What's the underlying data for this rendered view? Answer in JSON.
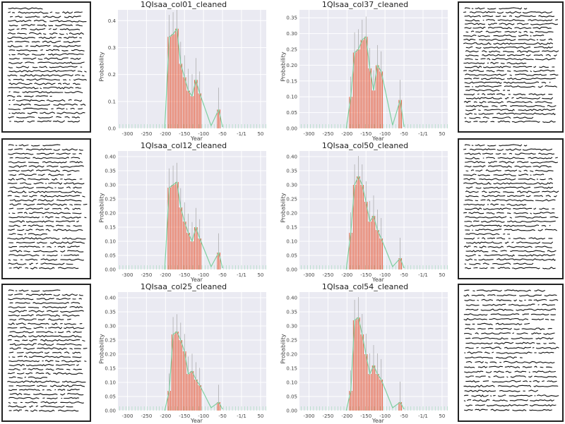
{
  "figure": {
    "thumbnails": [
      {
        "name": "manuscript-thumb-col01",
        "lines": 28
      },
      {
        "name": "manuscript-thumb-col12",
        "lines": 30
      },
      {
        "name": "manuscript-thumb-col25",
        "lines": 30
      },
      {
        "name": "manuscript-thumb-col37",
        "lines": 30
      },
      {
        "name": "manuscript-thumb-col50",
        "lines": 30
      },
      {
        "name": "manuscript-thumb-col54",
        "lines": 26
      }
    ]
  },
  "colors": {
    "bar": "#e8461e",
    "bar_edge": "#ffffff",
    "kde": "#7fcfa0",
    "plot_bg": "#eaeaf2",
    "grid": "#ffffff"
  },
  "chart_data": [
    {
      "type": "bar",
      "title": "1QIsaa_col01_cleaned",
      "xlabel": "Year",
      "ylabel": "Probability",
      "xlim": [
        -325,
        65
      ],
      "ylim": [
        0,
        0.44
      ],
      "xticks": [
        -300,
        -250,
        -200,
        -150,
        -100,
        -50,
        0,
        50
      ],
      "xtick_labels": [
        "-300",
        "-250",
        "-200",
        "-150",
        "-100",
        "-50",
        "-1/1",
        "50"
      ],
      "yticks": [
        0,
        0.1,
        0.2,
        0.3,
        0.4
      ],
      "ytick_labels": [
        "0.0",
        "0.1",
        "0.2",
        "0.3",
        "0.4"
      ],
      "grid": true,
      "bins": [
        {
          "x": -190,
          "y": 0.34
        },
        {
          "x": -180,
          "y": 0.35
        },
        {
          "x": -170,
          "y": 0.37
        },
        {
          "x": -160,
          "y": 0.24
        },
        {
          "x": -150,
          "y": 0.19
        },
        {
          "x": -140,
          "y": 0.14
        },
        {
          "x": -130,
          "y": 0.12
        },
        {
          "x": -120,
          "y": 0.18
        },
        {
          "x": -110,
          "y": 0.13
        },
        {
          "x": -60,
          "y": 0.07
        }
      ]
    },
    {
      "type": "bar",
      "title": "1QIsaa_col37_cleaned",
      "xlabel": "Year",
      "ylabel": "Probability",
      "xlim": [
        -325,
        65
      ],
      "ylim": [
        0,
        0.375
      ],
      "xticks": [
        -300,
        -250,
        -200,
        -150,
        -100,
        -50,
        0,
        50
      ],
      "xtick_labels": [
        "-300",
        "-250",
        "-200",
        "-150",
        "-100",
        "-50",
        "-1/1",
        "50"
      ],
      "yticks": [
        0,
        0.05,
        0.1,
        0.15,
        0.2,
        0.25,
        0.3,
        0.35
      ],
      "ytick_labels": [
        "0.00",
        "0.05",
        "0.10",
        "0.15",
        "0.20",
        "0.25",
        "0.30",
        "0.35"
      ],
      "grid": true,
      "bins": [
        {
          "x": -190,
          "y": 0.1
        },
        {
          "x": -180,
          "y": 0.24
        },
        {
          "x": -170,
          "y": 0.25
        },
        {
          "x": -160,
          "y": 0.28
        },
        {
          "x": -150,
          "y": 0.29
        },
        {
          "x": -140,
          "y": 0.19
        },
        {
          "x": -130,
          "y": 0.12
        },
        {
          "x": -120,
          "y": 0.2
        },
        {
          "x": -110,
          "y": 0.18
        },
        {
          "x": -60,
          "y": 0.09
        }
      ]
    },
    {
      "type": "bar",
      "title": "1QIsaa_col12_cleaned",
      "xlabel": "Year",
      "ylabel": "Probability",
      "xlim": [
        -325,
        65
      ],
      "ylim": [
        0,
        0.42
      ],
      "xticks": [
        -300,
        -250,
        -200,
        -150,
        -100,
        -50,
        0,
        50
      ],
      "xtick_labels": [
        "-300",
        "-250",
        "-200",
        "-150",
        "-100",
        "-50",
        "-1/1",
        "50"
      ],
      "yticks": [
        0,
        0.05,
        0.1,
        0.15,
        0.2,
        0.25,
        0.3,
        0.35,
        0.4
      ],
      "ytick_labels": [
        "0.00",
        "0.05",
        "0.10",
        "0.15",
        "0.20",
        "0.25",
        "0.30",
        "0.35",
        "0.40"
      ],
      "grid": true,
      "bins": [
        {
          "x": -190,
          "y": 0.29
        },
        {
          "x": -180,
          "y": 0.3
        },
        {
          "x": -170,
          "y": 0.31
        },
        {
          "x": -160,
          "y": 0.22
        },
        {
          "x": -150,
          "y": 0.17
        },
        {
          "x": -140,
          "y": 0.13
        },
        {
          "x": -130,
          "y": 0.1
        },
        {
          "x": -120,
          "y": 0.15
        },
        {
          "x": -110,
          "y": 0.11
        },
        {
          "x": -60,
          "y": 0.06
        }
      ]
    },
    {
      "type": "bar",
      "title": "1QIsaa_col50_cleaned",
      "xlabel": "Year",
      "ylabel": "Probability",
      "xlim": [
        -325,
        65
      ],
      "ylim": [
        0,
        0.42
      ],
      "xticks": [
        -300,
        -250,
        -200,
        -150,
        -100,
        -50,
        0,
        50
      ],
      "xtick_labels": [
        "-300",
        "-250",
        "-200",
        "-150",
        "-100",
        "-50",
        "-1/1",
        "50"
      ],
      "yticks": [
        0,
        0.05,
        0.1,
        0.15,
        0.2,
        0.25,
        0.3,
        0.35,
        0.4
      ],
      "ytick_labels": [
        "0.00",
        "0.05",
        "0.10",
        "0.15",
        "0.20",
        "0.25",
        "0.30",
        "0.35",
        "0.40"
      ],
      "grid": true,
      "bins": [
        {
          "x": -190,
          "y": 0.13
        },
        {
          "x": -180,
          "y": 0.3
        },
        {
          "x": -170,
          "y": 0.33
        },
        {
          "x": -160,
          "y": 0.3
        },
        {
          "x": -150,
          "y": 0.24
        },
        {
          "x": -140,
          "y": 0.17
        },
        {
          "x": -130,
          "y": 0.19
        },
        {
          "x": -120,
          "y": 0.14
        },
        {
          "x": -110,
          "y": 0.11
        },
        {
          "x": -60,
          "y": 0.04
        }
      ]
    },
    {
      "type": "bar",
      "title": "1QIsaa_col25_cleaned",
      "xlabel": "Year",
      "ylabel": "Probability",
      "xlim": [
        -325,
        65
      ],
      "ylim": [
        0,
        0.42
      ],
      "xticks": [
        -300,
        -250,
        -200,
        -150,
        -100,
        -50,
        0,
        50
      ],
      "xtick_labels": [
        "-300",
        "-250",
        "-200",
        "-150",
        "-100",
        "-50",
        "-1/1",
        "50"
      ],
      "yticks": [
        0,
        0.05,
        0.1,
        0.15,
        0.2,
        0.25,
        0.3,
        0.35,
        0.4
      ],
      "ytick_labels": [
        "0.00",
        "0.05",
        "0.10",
        "0.15",
        "0.20",
        "0.25",
        "0.30",
        "0.35",
        "0.40"
      ],
      "grid": true,
      "bins": [
        {
          "x": -190,
          "y": 0.07
        },
        {
          "x": -180,
          "y": 0.27
        },
        {
          "x": -170,
          "y": 0.28
        },
        {
          "x": -160,
          "y": 0.25
        },
        {
          "x": -150,
          "y": 0.21
        },
        {
          "x": -140,
          "y": 0.13
        },
        {
          "x": -130,
          "y": 0.14
        },
        {
          "x": -120,
          "y": 0.11
        },
        {
          "x": -110,
          "y": 0.09
        },
        {
          "x": -60,
          "y": 0.03
        }
      ]
    },
    {
      "type": "bar",
      "title": "1QIsaa_col54_cleaned",
      "xlabel": "Year",
      "ylabel": "Probability",
      "xlim": [
        -325,
        65
      ],
      "ylim": [
        0,
        0.42
      ],
      "xticks": [
        -300,
        -250,
        -200,
        -150,
        -100,
        -50,
        0,
        50
      ],
      "xtick_labels": [
        "-300",
        "-250",
        "-200",
        "-150",
        "-100",
        "-50",
        "-1/1",
        "50"
      ],
      "yticks": [
        0,
        0.05,
        0.1,
        0.15,
        0.2,
        0.25,
        0.3,
        0.35,
        0.4
      ],
      "ytick_labels": [
        "0.00",
        "0.05",
        "0.10",
        "0.15",
        "0.20",
        "0.25",
        "0.30",
        "0.35",
        "0.40"
      ],
      "grid": true,
      "bins": [
        {
          "x": -190,
          "y": 0.07
        },
        {
          "x": -180,
          "y": 0.32
        },
        {
          "x": -170,
          "y": 0.33
        },
        {
          "x": -160,
          "y": 0.27
        },
        {
          "x": -150,
          "y": 0.2
        },
        {
          "x": -140,
          "y": 0.13
        },
        {
          "x": -130,
          "y": 0.16
        },
        {
          "x": -120,
          "y": 0.13
        },
        {
          "x": -110,
          "y": 0.11
        },
        {
          "x": -60,
          "y": 0.03
        }
      ]
    }
  ]
}
